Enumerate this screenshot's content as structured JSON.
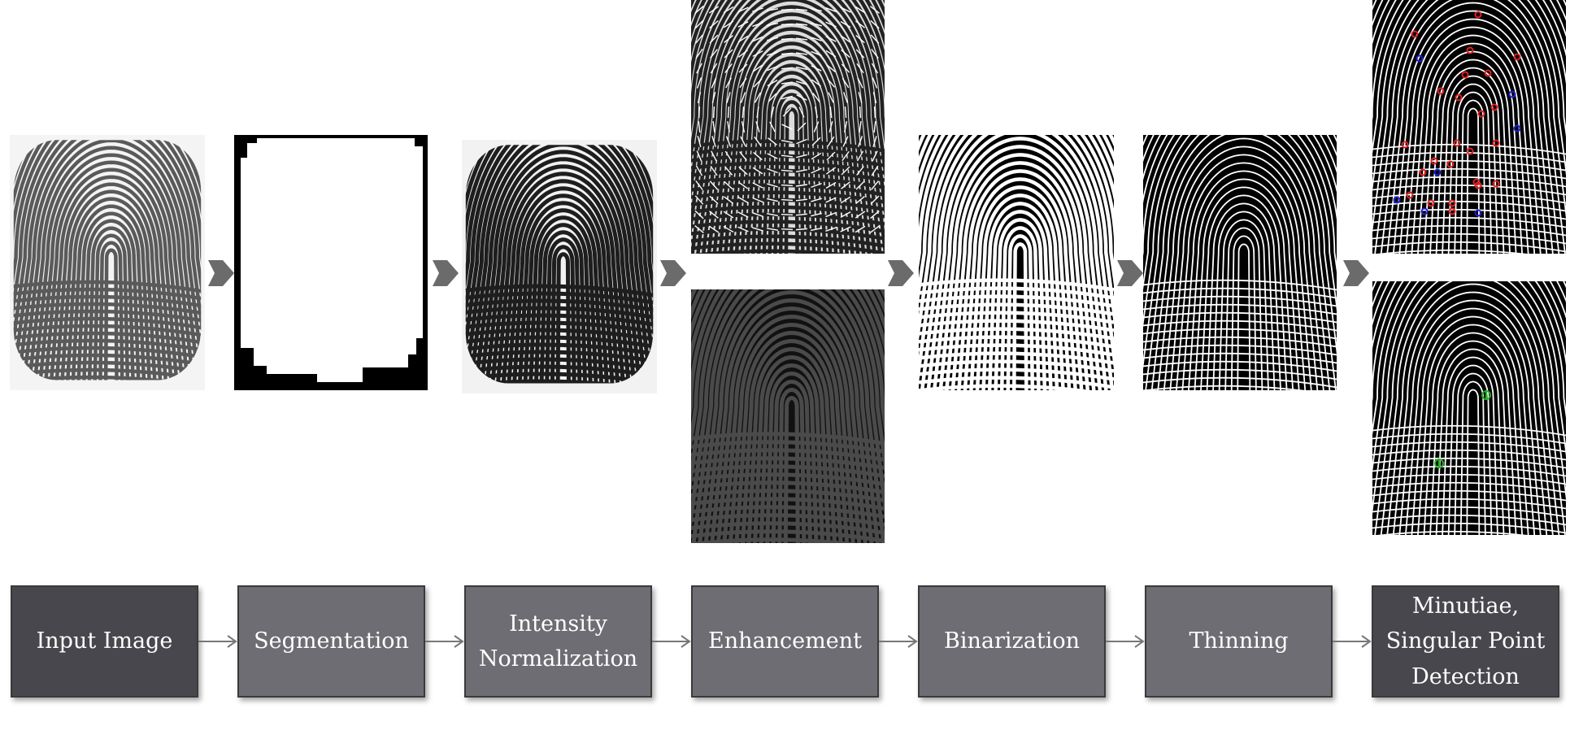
{
  "pipeline": {
    "steps": [
      {
        "label": "Input Image",
        "style": "dark"
      },
      {
        "label": "Segmentation",
        "style": "light"
      },
      {
        "label": "Intensity\nNormalization",
        "style": "light"
      },
      {
        "label": "Enhancement",
        "style": "light"
      },
      {
        "label": "Binarization",
        "style": "light"
      },
      {
        "label": "Thinning",
        "style": "light"
      },
      {
        "label": "Minutiae,\nSingular Point\nDetection",
        "style": "dark"
      }
    ]
  },
  "images": [
    {
      "name": "input-fingerprint",
      "background": "#f4f4f4",
      "ridge_color": "#5a5a5a"
    },
    {
      "name": "segmentation-mask",
      "background": "#000000",
      "fill": "#ffffff"
    },
    {
      "name": "normalized-fingerprint",
      "background": "#f2f2f2",
      "ridge_color": "#1e1e1e"
    },
    {
      "name": "orientation-field",
      "background": "#dcdcdc",
      "ridge_color": "#222222"
    },
    {
      "name": "enhanced-fingerprint",
      "background": "#111111",
      "ridge_color": "#4a4a4a"
    },
    {
      "name": "binarized-fingerprint",
      "background": "#000000",
      "ridge_color": "#ffffff"
    },
    {
      "name": "thinned-fingerprint",
      "background": "#000000",
      "ridge_color": "#ffffff"
    },
    {
      "name": "minutiae-fingerprint",
      "background": "#000000",
      "ridge_color": "#ffffff"
    },
    {
      "name": "singular-point-fingerprint",
      "background": "#000000",
      "ridge_color": "#ffffff"
    }
  ],
  "colors": {
    "arrow": "#6b6b6b",
    "connector": "#777777",
    "minutia_ending": "#e02020",
    "minutia_bifurcation": "#2020d0",
    "singular_point": "#20b020"
  }
}
